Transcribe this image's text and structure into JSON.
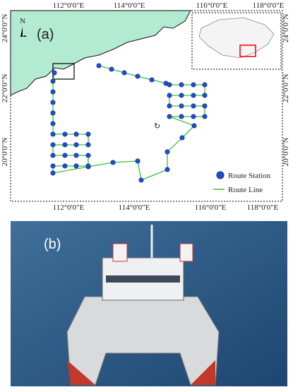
{
  "panel_a": {
    "label": "(a)",
    "north": "N",
    "top_labels": [
      "112°0'0\"E",
      "114°0'0\"E",
      "116°0'0\"E",
      "118°0'0\"E"
    ],
    "bottom_labels": [
      "112°0'0\"E",
      "114°0'0\"E",
      "116°0'0\"E",
      "118°0'0\"E"
    ],
    "left_labels": [
      "24°0'0\"N",
      "22°0'0\"N",
      "20°0'0\"N"
    ],
    "right_labels": [
      "24°0'0\"N",
      "22°0'0\"N",
      "20°0'0\"N"
    ],
    "legend": {
      "station": "Route Station",
      "line": "Route Line"
    }
  },
  "panel_b": {
    "label": "(b)"
  }
}
